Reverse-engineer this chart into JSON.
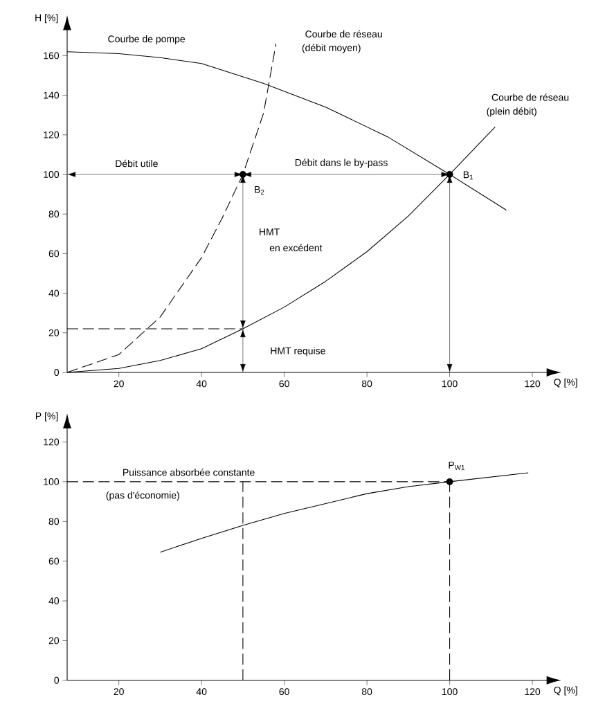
{
  "chart_data": [
    {
      "type": "line",
      "xlabel": "Q [%]",
      "ylabel": "H [%]",
      "xlim": [
        7.5,
        123
      ],
      "ylim": [
        0,
        172
      ],
      "xticks": [
        20,
        40,
        60,
        80,
        100,
        120
      ],
      "yticks": [
        0,
        20,
        40,
        60,
        80,
        100,
        120,
        140,
        160
      ],
      "series": [
        {
          "color": "#000000",
          "line_style": "solid",
          "x": [
            7.5,
            20,
            30,
            40,
            55,
            70,
            85,
            100,
            113.7
          ],
          "values": [
            162,
            161,
            159,
            156,
            146,
            134,
            119,
            100,
            82
          ]
        },
        {
          "color": "#000000",
          "line_style": "solid",
          "x": [
            7.5,
            20,
            30,
            40,
            50,
            60,
            70,
            80,
            90,
            100,
            111
          ],
          "values": [
            0,
            2,
            6,
            12,
            22,
            33,
            46,
            61,
            79,
            100,
            124
          ]
        },
        {
          "color": "#000000",
          "line_style": "dashed",
          "x": [
            7.5,
            20,
            30,
            40,
            45,
            50,
            55,
            58
          ],
          "values": [
            0,
            9,
            28,
            58,
            78,
            100,
            131,
            166
          ]
        },
        {
          "color": "#000000",
          "line_style": "dashed",
          "x": [
            7.5,
            50
          ],
          "values": [
            22,
            22
          ]
        },
        {
          "type": "scatter",
          "marker": "circle",
          "color": "#000000",
          "x": [
            50,
            100
          ],
          "values": [
            100,
            100
          ]
        }
      ],
      "marker": "none",
      "annotations": [
        "Courbe de pompe",
        "Courbe de réseau",
        "(débit moyen)",
        "Courbe de réseau",
        "(plein débit)",
        "Débit utile",
        "Débit dans le by-pass",
        "B$_{2}$",
        "B$_{1}$",
        "HMT",
        "en excédent",
        "HMT requise"
      ]
    },
    {
      "type": "line",
      "xlabel": "Q [%]",
      "ylabel": "P [%]",
      "xlim": [
        7.5,
        123
      ],
      "ylim": [
        0,
        126
      ],
      "xticks": [
        20,
        40,
        60,
        80,
        100,
        120
      ],
      "yticks": [
        0,
        20,
        40,
        60,
        80,
        100,
        120
      ],
      "series": [
        {
          "color": "#000000",
          "line_style": "solid",
          "x": [
            30,
            40,
            50,
            60,
            70,
            80,
            90,
            100,
            119
          ],
          "values": [
            64.5,
            71.5,
            78,
            84,
            89,
            94,
            97.5,
            100,
            104.5
          ]
        },
        {
          "color": "#000000",
          "line_style": "dashed",
          "x": [
            7.5,
            100
          ],
          "values": [
            100,
            100
          ]
        },
        {
          "color": "#000000",
          "line_style": "dashed",
          "x": [
            50,
            50
          ],
          "values": [
            0,
            100
          ]
        },
        {
          "color": "#000000",
          "line_style": "dashed",
          "x": [
            100,
            100
          ],
          "values": [
            0,
            100
          ]
        },
        {
          "type": "scatter",
          "marker": "circle",
          "color": "#000000",
          "x": [
            100
          ],
          "values": [
            100
          ]
        }
      ],
      "marker": "none",
      "annotations": [
        "Puissance absorbée constante",
        "(pas d'économie)",
        "P$_{W1}$"
      ]
    }
  ]
}
